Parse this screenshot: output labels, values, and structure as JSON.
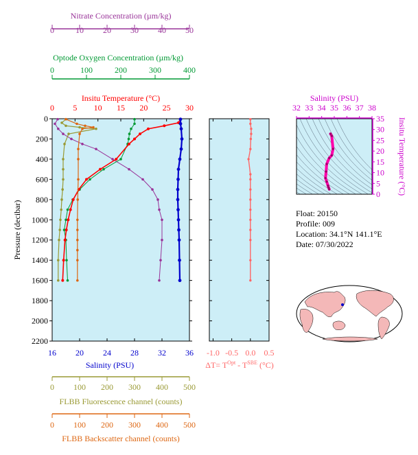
{
  "colors": {
    "nitrate": "#993399",
    "oxygen": "#009933",
    "temperature": "#ff0000",
    "salinity": "#0000cc",
    "fluorescence": "#999933",
    "backscatter": "#dd6611",
    "delta_t": "#ff6666",
    "ts_line": "#ff00aa",
    "ts_axis": "#cc00cc",
    "panel_bg": "#cdeef7",
    "land": "#f4b8b8",
    "ocean": "#ffffff"
  },
  "info": {
    "float": "Float:  20150",
    "profile": "Profile:  009",
    "location": "Location:  34.1°N  141.1°E",
    "date": "Date:  07/30/2022"
  },
  "chart_data": [
    {
      "type": "line",
      "title": "",
      "ylabel": "Pressure (decibar)",
      "ylim": [
        2200,
        0
      ],
      "yticks": [
        0,
        200,
        400,
        600,
        800,
        1000,
        1200,
        1400,
        1600,
        1800,
        2000,
        2200
      ],
      "grid": false,
      "axes": [
        {
          "key": "nitrate",
          "label": "Nitrate Concentration (µm/kg)",
          "position": "top",
          "lim": [
            0,
            50
          ],
          "ticks": [
            0,
            10,
            20,
            30,
            40,
            50
          ]
        },
        {
          "key": "oxygen",
          "label": "Optode Oxygen Concentration (µm/kg)",
          "position": "top",
          "lim": [
            0,
            400
          ],
          "ticks": [
            0,
            100,
            200,
            300,
            400
          ]
        },
        {
          "key": "temperature",
          "label": "Insitu Temperature (°C)",
          "position": "top",
          "lim": [
            0,
            30
          ],
          "ticks": [
            0,
            5,
            10,
            15,
            20,
            25,
            30
          ]
        },
        {
          "key": "salinity",
          "label": "Salinity (PSU)",
          "position": "bottom",
          "lim": [
            16,
            36
          ],
          "ticks": [
            16,
            20,
            24,
            28,
            32,
            36
          ]
        },
        {
          "key": "fluorescence",
          "label": "FLBB Fluorescence channel (counts)",
          "position": "bottom",
          "lim": [
            0,
            500
          ],
          "ticks": [
            0,
            100,
            200,
            300,
            400,
            500
          ]
        },
        {
          "key": "backscatter",
          "label": "FLBB Backscatter channel (counts)",
          "position": "bottom",
          "lim": [
            0,
            500
          ],
          "ticks": [
            0,
            100,
            200,
            300,
            400,
            500
          ]
        }
      ],
      "series": [
        {
          "key": "nitrate",
          "x": [
            2.0,
            1.0,
            2.2,
            4.0,
            7.0,
            11.0,
            16.0,
            22.0,
            28.0,
            33.0,
            36.5,
            38.5,
            39.0,
            40.0,
            40.0,
            39.5,
            39.0
          ],
          "y": [
            5,
            50,
            100,
            150,
            200,
            250,
            300,
            400,
            500,
            600,
            700,
            800,
            900,
            1000,
            1200,
            1400,
            1600
          ]
        },
        {
          "key": "oxygen",
          "x": [
            240,
            240,
            230,
            225,
            223,
            220,
            200,
            150,
            110,
            80,
            60,
            45,
            40,
            35,
            40,
            42,
            45
          ],
          "y": [
            5,
            50,
            100,
            150,
            200,
            250,
            400,
            500,
            600,
            700,
            800,
            900,
            1000,
            1100,
            1200,
            1400,
            1600
          ]
        },
        {
          "key": "temperature",
          "x": [
            28.0,
            27.6,
            24.5,
            21.0,
            19.2,
            18.0,
            16.8,
            14.0,
            10.5,
            7.5,
            5.8,
            4.6,
            4.0,
            3.5,
            3.1,
            2.8,
            2.5,
            2.3
          ],
          "y": [
            5,
            40,
            70,
            100,
            150,
            200,
            250,
            400,
            500,
            600,
            700,
            800,
            900,
            1000,
            1100,
            1200,
            1400,
            1600
          ]
        },
        {
          "key": "salinity",
          "x": [
            34.7,
            34.7,
            34.8,
            34.9,
            34.8,
            34.6,
            34.4,
            34.35,
            34.3,
            34.3,
            34.35,
            34.4,
            34.45,
            34.5,
            34.55,
            34.6
          ],
          "y": [
            5,
            50,
            100,
            200,
            300,
            400,
            500,
            600,
            700,
            800,
            900,
            1000,
            1100,
            1200,
            1400,
            1600
          ]
        },
        {
          "key": "fluorescence",
          "x": [
            50,
            35,
            50,
            100,
            160,
            60,
            45,
            40,
            40,
            40,
            38,
            35,
            33,
            30,
            28,
            25,
            22,
            22
          ],
          "y": [
            5,
            40,
            70,
            85,
            100,
            150,
            250,
            400,
            500,
            600,
            700,
            800,
            900,
            1000,
            1100,
            1200,
            1400,
            1600
          ]
        },
        {
          "key": "backscatter",
          "x": [
            50,
            90,
            120,
            150,
            110,
            100,
            95,
            95,
            95,
            93,
            92,
            92,
            92,
            92,
            92,
            92
          ],
          "y": [
            5,
            50,
            70,
            85,
            100,
            150,
            300,
            400,
            600,
            800,
            1000,
            1100,
            1200,
            1300,
            1400,
            1600
          ]
        }
      ]
    },
    {
      "type": "line",
      "title": "",
      "xlabel": "ΔT= T^Opt - T^SBE (°C)",
      "xlim": [
        -1.1,
        0.5
      ],
      "xticks": [
        -1.0,
        -0.5,
        0.0,
        0.5
      ],
      "ylim": [
        2200,
        0
      ],
      "series": [
        {
          "key": "delta_t",
          "x": [
            0.0,
            0.0,
            0.02,
            0.02,
            0.01,
            0.0,
            -0.05,
            0.0,
            0.0,
            0.0,
            0.0,
            0.0,
            0.0,
            0.0,
            0.0,
            0.0,
            0.0
          ],
          "y": [
            5,
            50,
            100,
            150,
            200,
            300,
            400,
            550,
            600,
            700,
            800,
            900,
            1000,
            1100,
            1200,
            1400,
            1600
          ]
        }
      ]
    },
    {
      "type": "line",
      "title": "",
      "xlabel": "Salinity (PSU)",
      "ylabel": "Insitu Temperature (°C)",
      "xlim": [
        32,
        38
      ],
      "ylim": [
        0,
        35
      ],
      "xticks": [
        32,
        33,
        34,
        35,
        36,
        37,
        38
      ],
      "yticks": [
        0,
        5,
        10,
        15,
        20,
        25,
        30,
        35
      ],
      "series": [
        {
          "key": "ts",
          "x": [
            34.7,
            34.8,
            34.9,
            34.8,
            34.6,
            34.4,
            34.35,
            34.3,
            34.4,
            34.5,
            34.55,
            34.6
          ],
          "y": [
            28.0,
            27.0,
            21.0,
            18.0,
            16.8,
            14.0,
            10.5,
            7.5,
            5.8,
            4.0,
            3.1,
            2.3
          ]
        }
      ]
    }
  ]
}
